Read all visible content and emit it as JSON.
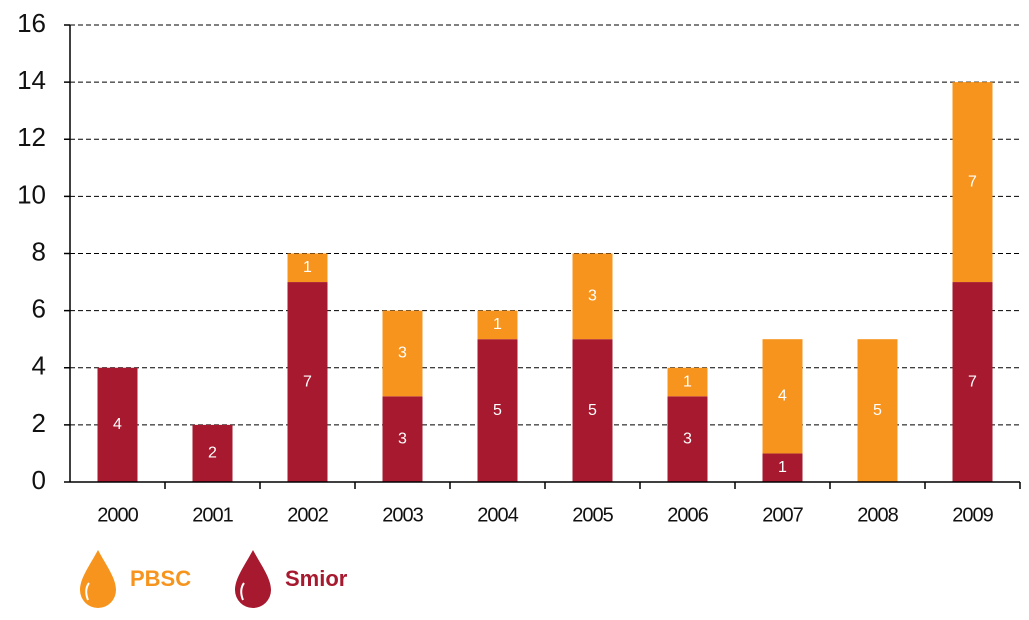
{
  "chart_data": {
    "type": "stacked_bar",
    "categories": [
      "2000",
      "2001",
      "2002",
      "2003",
      "2004",
      "2005",
      "2006",
      "2007",
      "2008",
      "2009"
    ],
    "series": [
      {
        "name": "Smior",
        "color": "#a6192e",
        "values": [
          4,
          2,
          7,
          3,
          5,
          5,
          3,
          1,
          null,
          7
        ]
      },
      {
        "name": "PBSC",
        "color": "#f7941d",
        "values": [
          null,
          null,
          1,
          3,
          1,
          3,
          1,
          4,
          5,
          7
        ]
      }
    ],
    "ylim": [
      0,
      16
    ],
    "yticks": [
      0,
      2,
      4,
      6,
      8,
      10,
      12,
      14,
      16
    ],
    "grid": true
  }
}
